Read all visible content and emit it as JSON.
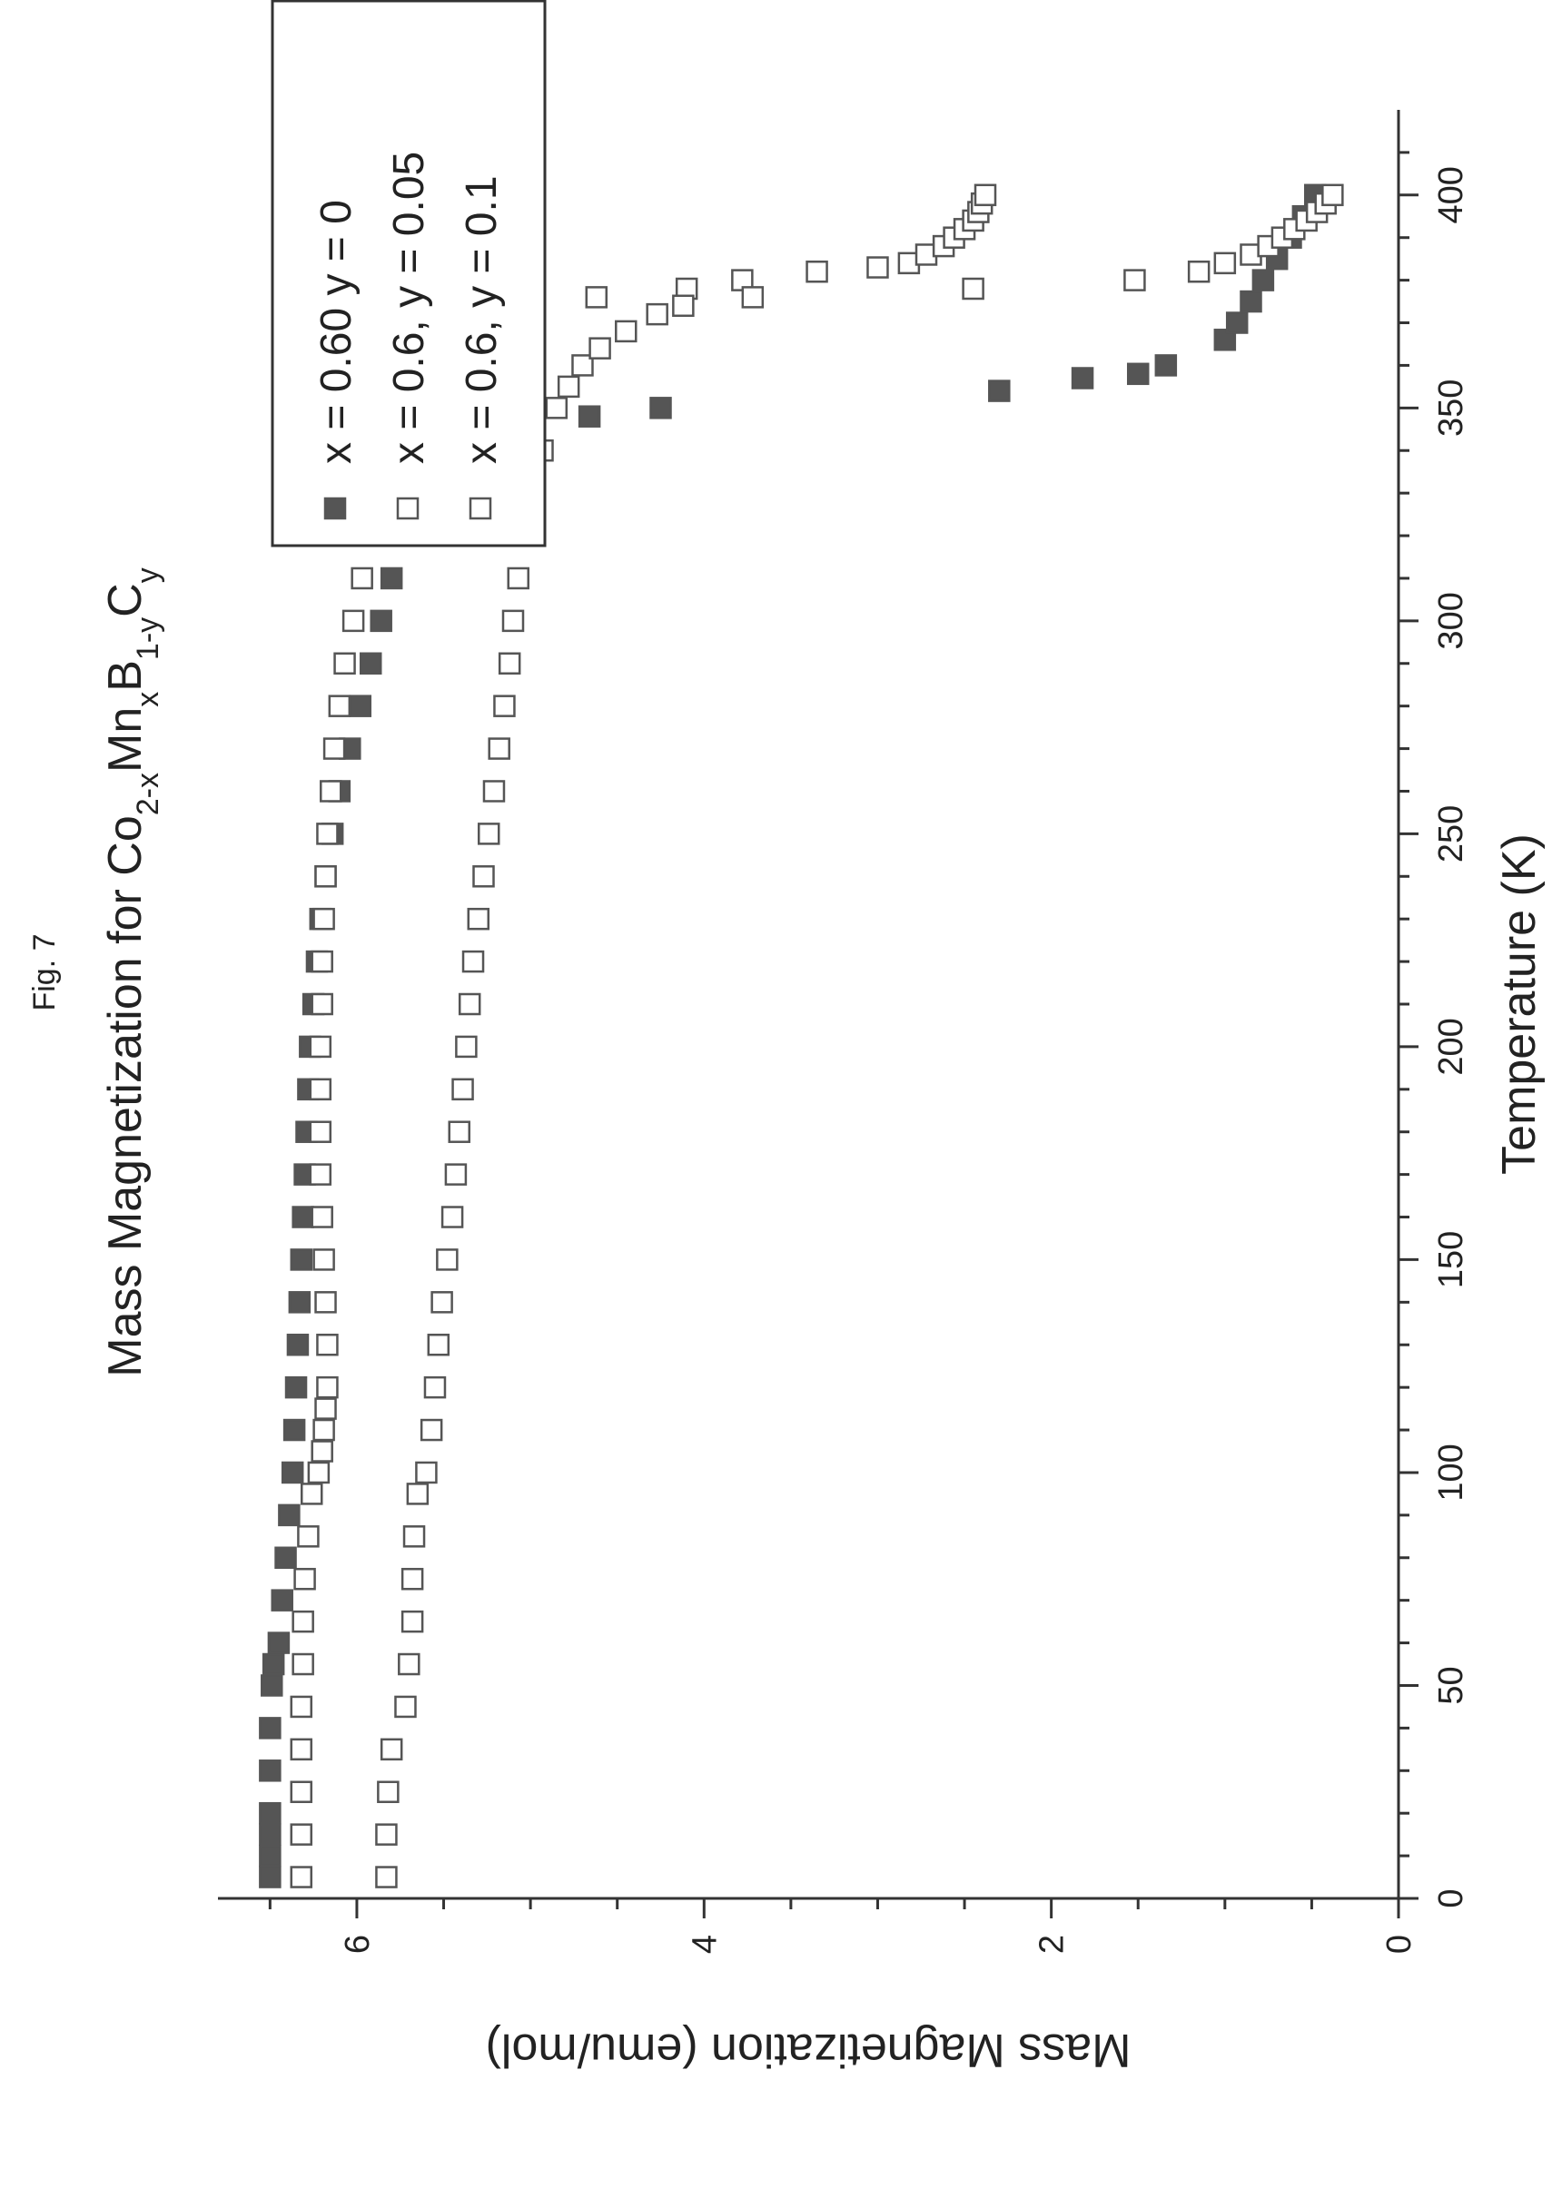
{
  "figure_label": "Fig. 7",
  "chart_data": {
    "type": "scatter",
    "title": "Mass Magnetization for Co",
    "title_parts": [
      {
        "text": "Mass Magnetization for Co",
        "sub": false
      },
      {
        "text": "2-x",
        "sub": true
      },
      {
        "text": "Mn",
        "sub": false
      },
      {
        "text": "x",
        "sub": true
      },
      {
        "text": "B",
        "sub": false
      },
      {
        "text": "1-y",
        "sub": true
      },
      {
        "text": "C",
        "sub": false
      },
      {
        "text": "y",
        "sub": true
      }
    ],
    "xlabel": "Temperature (K)",
    "ylabel": "Mass Magnetization (emu/mol)",
    "xlim": [
      0,
      420
    ],
    "ylim": [
      0,
      6.8
    ],
    "x_ticks": [
      0,
      50,
      100,
      150,
      200,
      250,
      300,
      350,
      400
    ],
    "x_tick_labels": [
      "0",
      "50",
      "100",
      "150",
      "200",
      "250",
      "300",
      "350",
      "400"
    ],
    "y_ticks": [
      0,
      2,
      4,
      6
    ],
    "y_tick_labels": [
      "0",
      "2",
      "4",
      "6"
    ],
    "grid": false,
    "legend_position": "top-right",
    "series": [
      {
        "name": "x = 0.60 y = 0",
        "marker": "filled-square",
        "color": "#555555",
        "points": [
          [
            5,
            6.5
          ],
          [
            10,
            6.5
          ],
          [
            15,
            6.5
          ],
          [
            20,
            6.5
          ],
          [
            30,
            6.5
          ],
          [
            40,
            6.5
          ],
          [
            50,
            6.49
          ],
          [
            55,
            6.48
          ],
          [
            60,
            6.45
          ],
          [
            70,
            6.43
          ],
          [
            80,
            6.41
          ],
          [
            90,
            6.39
          ],
          [
            100,
            6.37
          ],
          [
            110,
            6.36
          ],
          [
            120,
            6.35
          ],
          [
            130,
            6.34
          ],
          [
            140,
            6.33
          ],
          [
            150,
            6.32
          ],
          [
            160,
            6.31
          ],
          [
            170,
            6.3
          ],
          [
            180,
            6.29
          ],
          [
            190,
            6.28
          ],
          [
            200,
            6.27
          ],
          [
            210,
            6.25
          ],
          [
            220,
            6.23
          ],
          [
            230,
            6.21
          ],
          [
            240,
            6.18
          ],
          [
            250,
            6.14
          ],
          [
            260,
            6.1
          ],
          [
            270,
            6.04
          ],
          [
            280,
            5.98
          ],
          [
            290,
            5.92
          ],
          [
            300,
            5.86
          ],
          [
            310,
            5.8
          ],
          [
            320,
            5.73
          ],
          [
            330,
            5.65
          ],
          [
            335,
            5.6
          ],
          [
            340,
            5.54
          ],
          [
            342,
            5.5
          ],
          [
            345,
            5.15
          ],
          [
            348,
            4.66
          ],
          [
            350,
            4.25
          ],
          [
            354,
            2.3
          ],
          [
            357,
            1.82
          ],
          [
            358,
            1.5
          ],
          [
            360,
            1.34
          ],
          [
            366,
            1.0
          ],
          [
            370,
            0.93
          ],
          [
            375,
            0.85
          ],
          [
            380,
            0.78
          ],
          [
            385,
            0.7
          ],
          [
            390,
            0.62
          ],
          [
            395,
            0.55
          ],
          [
            400,
            0.48
          ]
        ]
      },
      {
        "name": "x = 0.6, y = 0.05",
        "marker": "open-square",
        "color": "#555555",
        "points": [
          [
            5,
            6.32
          ],
          [
            15,
            6.32
          ],
          [
            25,
            6.32
          ],
          [
            35,
            6.32
          ],
          [
            45,
            6.32
          ],
          [
            55,
            6.31
          ],
          [
            65,
            6.31
          ],
          [
            75,
            6.3
          ],
          [
            85,
            6.28
          ],
          [
            95,
            6.26
          ],
          [
            100,
            6.22
          ],
          [
            105,
            6.2
          ],
          [
            110,
            6.19
          ],
          [
            115,
            6.18
          ],
          [
            120,
            6.17
          ],
          [
            130,
            6.17
          ],
          [
            140,
            6.18
          ],
          [
            150,
            6.19
          ],
          [
            160,
            6.2
          ],
          [
            170,
            6.21
          ],
          [
            180,
            6.21
          ],
          [
            190,
            6.21
          ],
          [
            200,
            6.21
          ],
          [
            210,
            6.2
          ],
          [
            220,
            6.2
          ],
          [
            230,
            6.19
          ],
          [
            240,
            6.18
          ],
          [
            250,
            6.17
          ],
          [
            260,
            6.15
          ],
          [
            270,
            6.13
          ],
          [
            280,
            6.1
          ],
          [
            290,
            6.07
          ],
          [
            300,
            6.02
          ],
          [
            310,
            5.97
          ],
          [
            320,
            5.92
          ],
          [
            330,
            5.86
          ],
          [
            340,
            5.78
          ],
          [
            350,
            5.7
          ],
          [
            355,
            5.64
          ],
          [
            360,
            5.56
          ],
          [
            362,
            5.5
          ],
          [
            364,
            5.46
          ],
          [
            367,
            5.38
          ],
          [
            370,
            5.32
          ],
          [
            374,
            5.1
          ],
          [
            376,
            4.62
          ],
          [
            378,
            4.1
          ],
          [
            380,
            3.78
          ],
          [
            382,
            3.35
          ],
          [
            383,
            3.0
          ],
          [
            384,
            2.82
          ],
          [
            386,
            2.72
          ],
          [
            388,
            2.62
          ],
          [
            390,
            2.56
          ],
          [
            392,
            2.5
          ],
          [
            394,
            2.45
          ],
          [
            396,
            2.42
          ],
          [
            398,
            2.4
          ],
          [
            400,
            2.38
          ]
        ]
      },
      {
        "name": "x = 0.6, y = 0.1",
        "marker": "open-square",
        "color": "#555555",
        "points": [
          [
            5,
            5.83
          ],
          [
            15,
            5.83
          ],
          [
            25,
            5.82
          ],
          [
            35,
            5.8
          ],
          [
            45,
            5.72
          ],
          [
            55,
            5.7
          ],
          [
            65,
            5.68
          ],
          [
            75,
            5.68
          ],
          [
            85,
            5.67
          ],
          [
            95,
            5.65
          ],
          [
            100,
            5.6
          ],
          [
            110,
            5.57
          ],
          [
            120,
            5.55
          ],
          [
            130,
            5.53
          ],
          [
            140,
            5.51
          ],
          [
            150,
            5.48
          ],
          [
            160,
            5.45
          ],
          [
            170,
            5.43
          ],
          [
            180,
            5.41
          ],
          [
            190,
            5.39
          ],
          [
            200,
            5.37
          ],
          [
            210,
            5.35
          ],
          [
            220,
            5.33
          ],
          [
            230,
            5.3
          ],
          [
            240,
            5.27
          ],
          [
            250,
            5.24
          ],
          [
            260,
            5.21
          ],
          [
            270,
            5.18
          ],
          [
            280,
            5.15
          ],
          [
            290,
            5.12
          ],
          [
            300,
            5.1
          ],
          [
            310,
            5.07
          ],
          [
            320,
            5.04
          ],
          [
            330,
            5.0
          ],
          [
            340,
            4.93
          ],
          [
            350,
            4.85
          ],
          [
            355,
            4.78
          ],
          [
            360,
            4.7
          ],
          [
            364,
            4.6
          ],
          [
            368,
            4.45
          ],
          [
            372,
            4.27
          ],
          [
            374,
            4.12
          ],
          [
            376,
            3.72
          ],
          [
            378,
            2.45
          ],
          [
            380,
            1.52
          ],
          [
            382,
            1.15
          ],
          [
            384,
            1.0
          ],
          [
            386,
            0.85
          ],
          [
            388,
            0.75
          ],
          [
            390,
            0.67
          ],
          [
            392,
            0.6
          ],
          [
            394,
            0.53
          ],
          [
            396,
            0.47
          ],
          [
            398,
            0.42
          ],
          [
            400,
            0.38
          ]
        ]
      }
    ]
  }
}
